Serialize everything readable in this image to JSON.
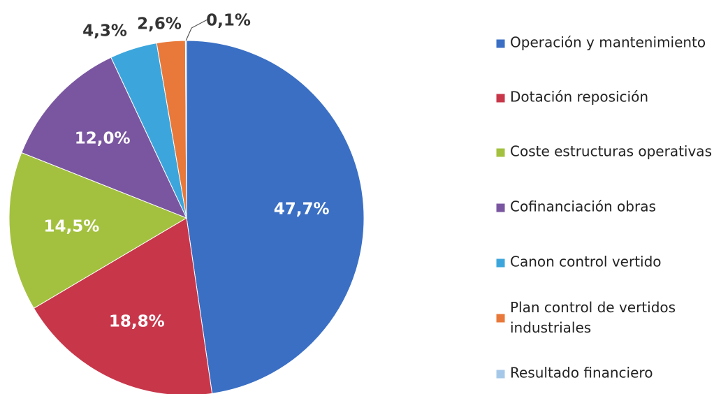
{
  "chart_data": {
    "type": "pie",
    "categories": [
      "Operación y mantenimiento",
      "Dotación reposición",
      "Coste estructuras operativas",
      "Cofinanciación obras",
      "Canon control vertido",
      "Plan control de vertidos industriales",
      "Resultado financiero"
    ],
    "values": [
      47.7,
      18.8,
      14.5,
      12.0,
      4.3,
      2.6,
      0.1
    ],
    "value_labels": [
      "47,7%",
      "18,8%",
      "14,5%",
      "12,0%",
      "4,3%",
      "2,6%",
      "0,1%"
    ],
    "colors": [
      "#3a6fc4",
      "#c8364a",
      "#a3c13f",
      "#7a56a0",
      "#3ca6dc",
      "#e8793a",
      "#a6c8e8"
    ],
    "legend": "right"
  }
}
